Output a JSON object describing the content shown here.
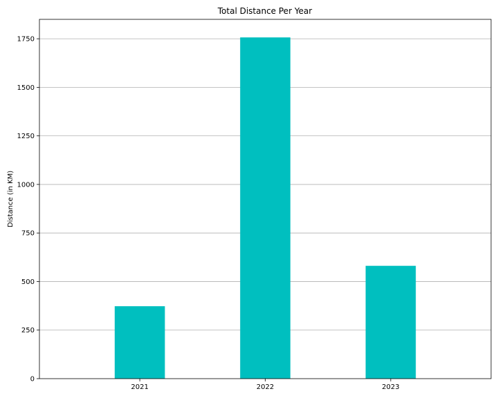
{
  "chart_data": {
    "type": "bar",
    "title": "Total Distance Per Year",
    "xlabel": "",
    "ylabel": "Distance (in KM)",
    "categories": [
      "2021",
      "2022",
      "2023"
    ],
    "values": [
      373,
      1757,
      581
    ],
    "ylim": [
      0,
      1850
    ],
    "yticks": [
      0,
      250,
      500,
      750,
      1000,
      1250,
      1500,
      1750
    ],
    "grid": "y-major",
    "bar_color": "#00bfbf",
    "legend": "none"
  }
}
